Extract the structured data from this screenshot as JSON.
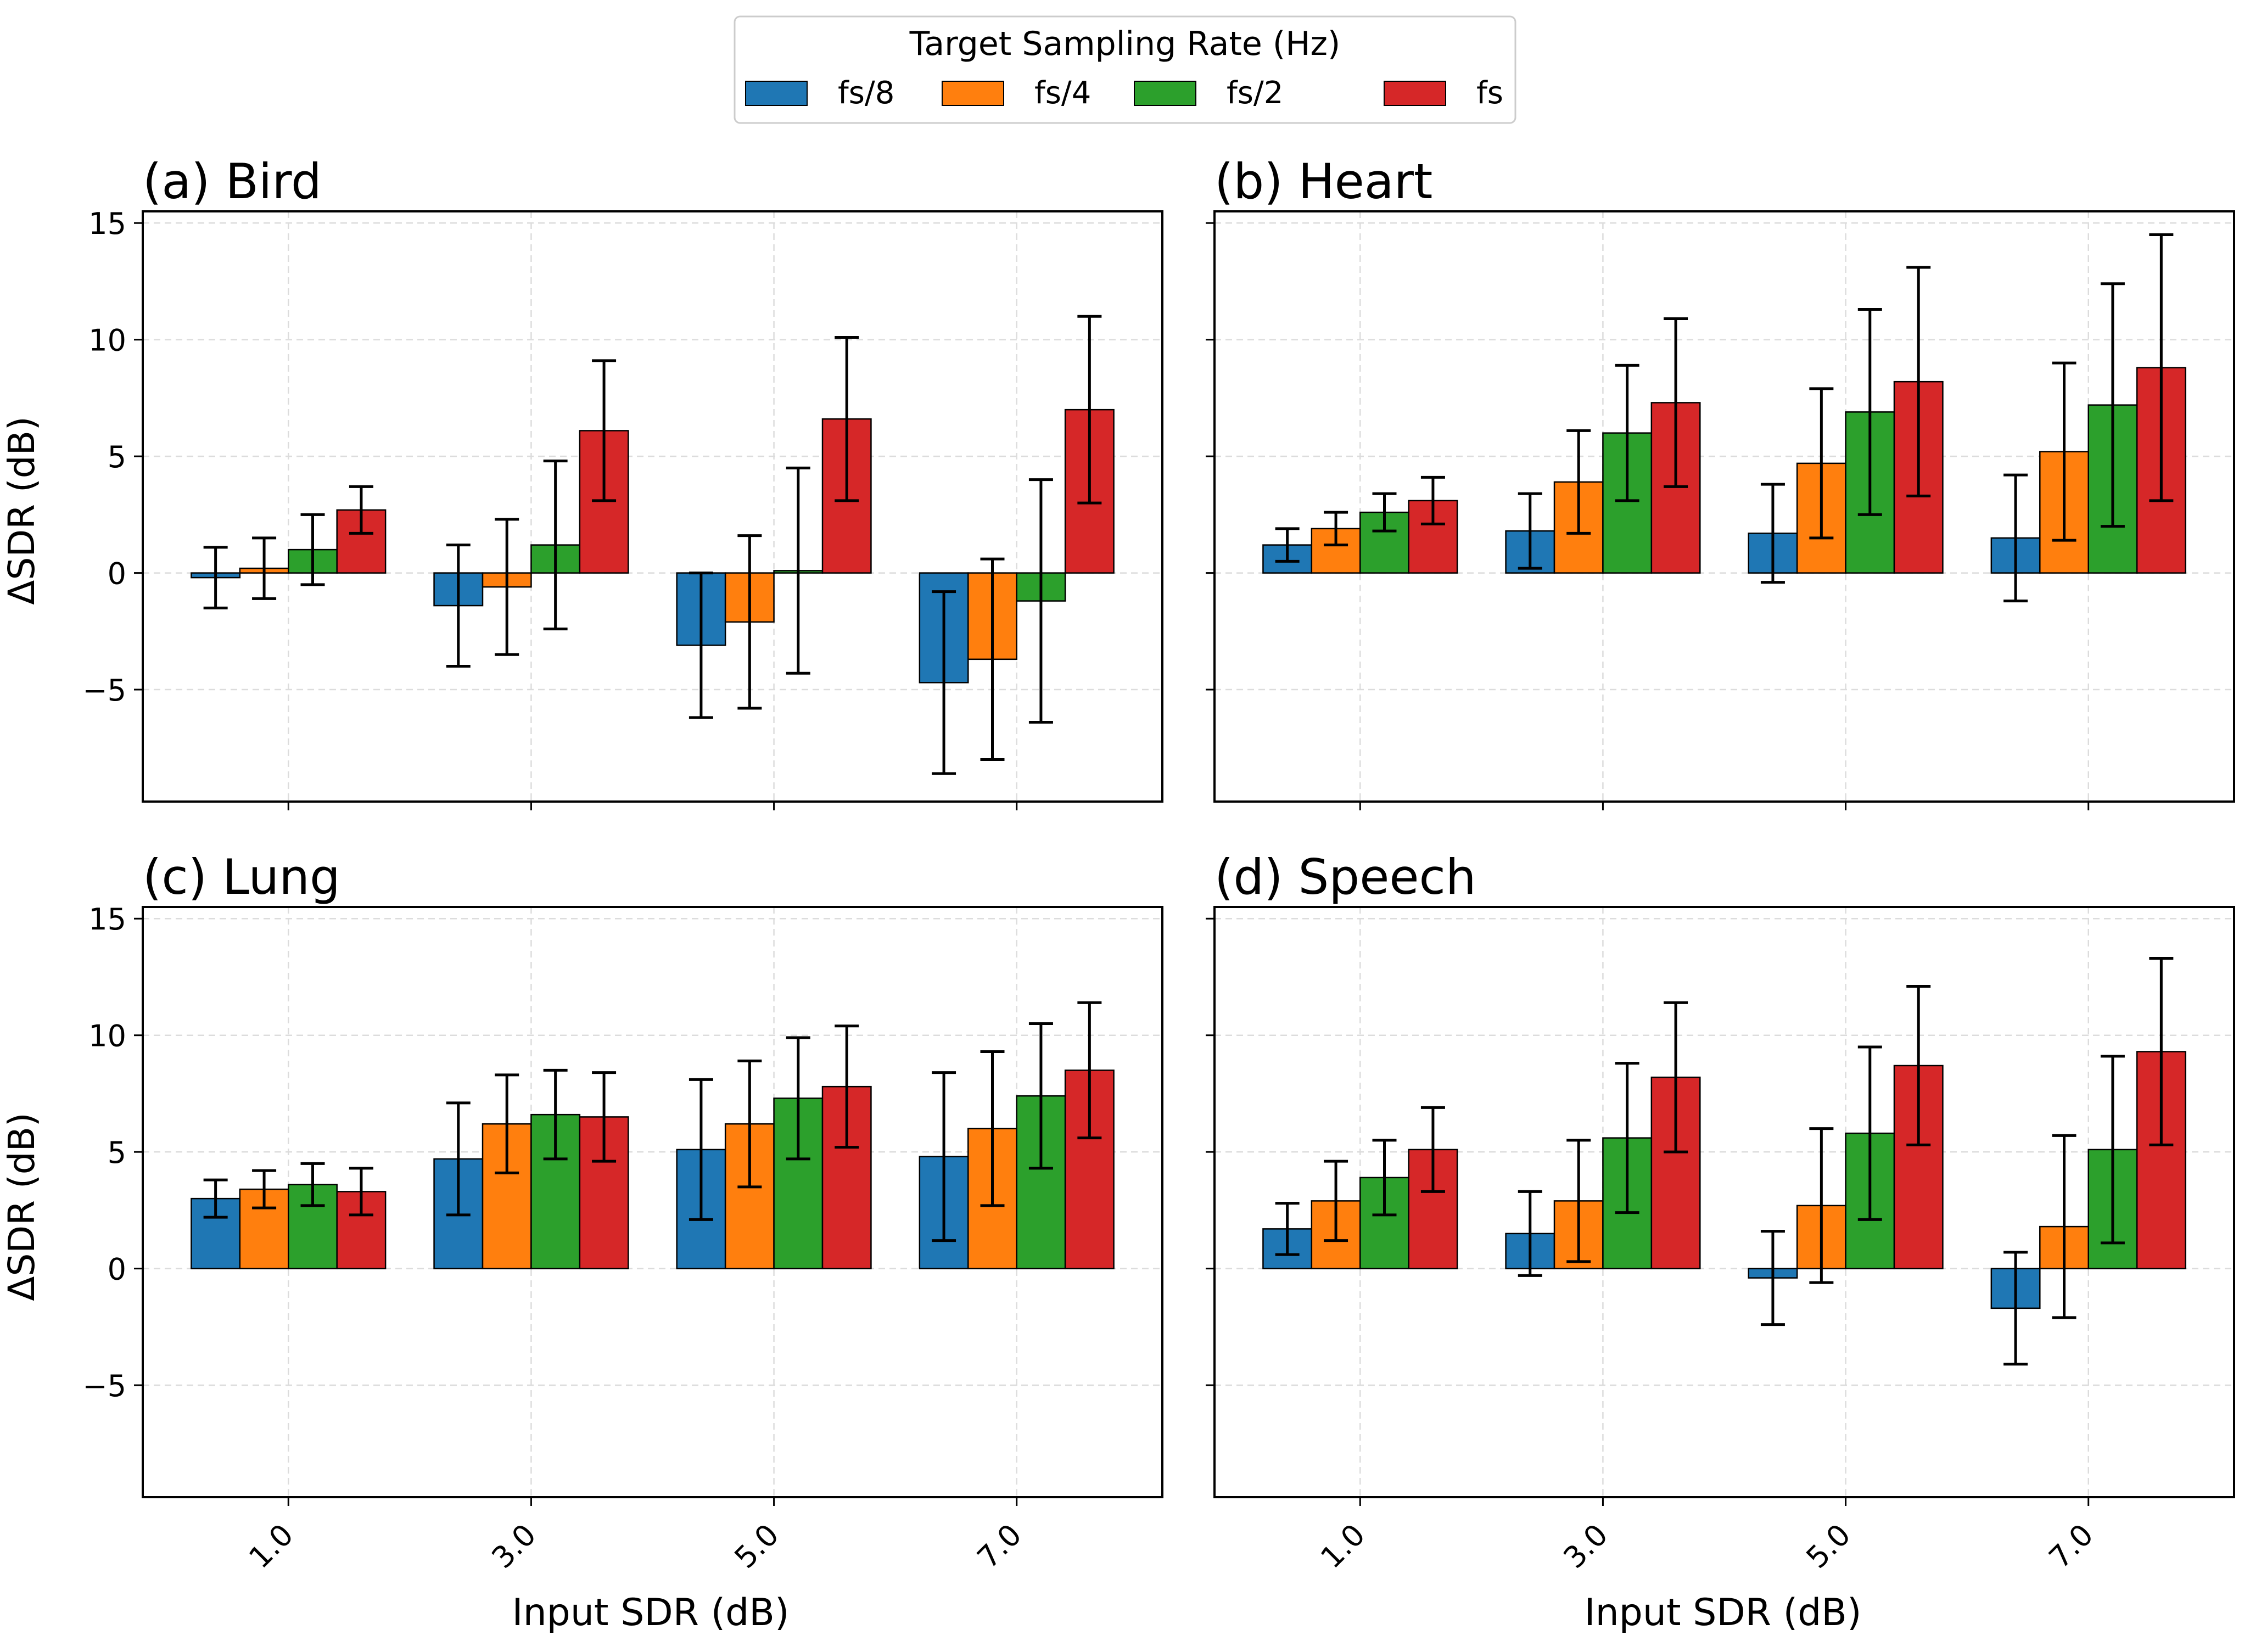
{
  "legend": {
    "title": "Target Sampling Rate (Hz)",
    "placement": "top-center",
    "entries": [
      {
        "label": "fs/8",
        "color": "#1f77b4"
      },
      {
        "label": "fs/4",
        "color": "#ff7f0e"
      },
      {
        "label": "fs/2",
        "color": "#2ca02c"
      },
      {
        "label": "fs",
        "color": "#d62728"
      }
    ]
  },
  "axes": {
    "xlabel": "Input SDR (dB)",
    "ylabel": "ΔSDR (dB)",
    "ylim": [
      -9.8,
      15.5
    ],
    "yticks": [
      -5,
      0,
      5,
      10,
      15
    ],
    "ytick_labels": [
      "−5",
      "0",
      "5",
      "10",
      "15"
    ],
    "grid": true,
    "shared_x": true,
    "shared_y": true
  },
  "chart_data": [
    {
      "type": "bar",
      "title": "(a) Bird",
      "categories": [
        "1.0",
        "3.0",
        "5.0",
        "7.0"
      ],
      "series": [
        {
          "name": "fs/8",
          "values": [
            -0.2,
            -1.4,
            -3.1,
            -4.7
          ],
          "err": [
            1.3,
            2.6,
            3.1,
            3.9
          ]
        },
        {
          "name": "fs/4",
          "values": [
            0.2,
            -0.6,
            -2.1,
            -3.7
          ],
          "err": [
            1.3,
            2.9,
            3.7,
            4.3
          ]
        },
        {
          "name": "fs/2",
          "values": [
            1.0,
            1.2,
            0.1,
            -1.2
          ],
          "err": [
            1.5,
            3.6,
            4.4,
            5.2
          ]
        },
        {
          "name": "fs",
          "values": [
            2.7,
            6.1,
            6.6,
            7.0
          ],
          "err": [
            1.0,
            3.0,
            3.5,
            4.0
          ]
        }
      ]
    },
    {
      "type": "bar",
      "title": "(b) Heart",
      "categories": [
        "1.0",
        "3.0",
        "5.0",
        "7.0"
      ],
      "series": [
        {
          "name": "fs/8",
          "values": [
            1.2,
            1.8,
            1.7,
            1.5
          ],
          "err": [
            0.7,
            1.6,
            2.1,
            2.7
          ]
        },
        {
          "name": "fs/4",
          "values": [
            1.9,
            3.9,
            4.7,
            5.2
          ],
          "err": [
            0.7,
            2.2,
            3.2,
            3.8
          ]
        },
        {
          "name": "fs/2",
          "values": [
            2.6,
            6.0,
            6.9,
            7.2
          ],
          "err": [
            0.8,
            2.9,
            4.4,
            5.2
          ]
        },
        {
          "name": "fs",
          "values": [
            3.1,
            7.3,
            8.2,
            8.8
          ],
          "err": [
            1.0,
            3.6,
            4.9,
            5.7
          ]
        }
      ]
    },
    {
      "type": "bar",
      "title": "(c) Lung",
      "categories": [
        "1.0",
        "3.0",
        "5.0",
        "7.0"
      ],
      "series": [
        {
          "name": "fs/8",
          "values": [
            3.0,
            4.7,
            5.1,
            4.8
          ],
          "err": [
            0.8,
            2.4,
            3.0,
            3.6
          ]
        },
        {
          "name": "fs/4",
          "values": [
            3.4,
            6.2,
            6.2,
            6.0
          ],
          "err": [
            0.8,
            2.1,
            2.7,
            3.3
          ]
        },
        {
          "name": "fs/2",
          "values": [
            3.6,
            6.6,
            7.3,
            7.4
          ],
          "err": [
            0.9,
            1.9,
            2.6,
            3.1
          ]
        },
        {
          "name": "fs",
          "values": [
            3.3,
            6.5,
            7.8,
            8.5
          ],
          "err": [
            1.0,
            1.9,
            2.6,
            2.9
          ]
        }
      ]
    },
    {
      "type": "bar",
      "title": "(d) Speech",
      "categories": [
        "1.0",
        "3.0",
        "5.0",
        "7.0"
      ],
      "series": [
        {
          "name": "fs/8",
          "values": [
            1.7,
            1.5,
            -0.4,
            -1.7
          ],
          "err": [
            1.1,
            1.8,
            2.0,
            2.4
          ]
        },
        {
          "name": "fs/4",
          "values": [
            2.9,
            2.9,
            2.7,
            1.8
          ],
          "err": [
            1.7,
            2.6,
            3.3,
            3.9
          ]
        },
        {
          "name": "fs/2",
          "values": [
            3.9,
            5.6,
            5.8,
            5.1
          ],
          "err": [
            1.6,
            3.2,
            3.7,
            4.0
          ]
        },
        {
          "name": "fs",
          "values": [
            5.1,
            8.2,
            8.7,
            9.3
          ],
          "err": [
            1.8,
            3.2,
            3.4,
            4.0
          ]
        }
      ]
    }
  ]
}
